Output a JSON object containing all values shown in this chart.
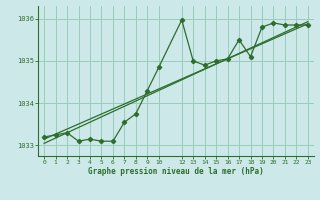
{
  "bg_color": "#cce8e8",
  "grid_color": "#99ccbb",
  "line_color": "#2d6e2d",
  "xlabel": "Graphe pression niveau de la mer (hPa)",
  "ylim": [
    1032.75,
    1036.3
  ],
  "xlim": [
    -0.5,
    23.5
  ],
  "yticks": [
    1033,
    1034,
    1035,
    1036
  ],
  "xticks": [
    0,
    1,
    2,
    3,
    4,
    5,
    6,
    7,
    8,
    9,
    10,
    12,
    13,
    14,
    15,
    16,
    17,
    18,
    19,
    20,
    21,
    22,
    23
  ],
  "series1_x": [
    0,
    1,
    2,
    3,
    4,
    5,
    6,
    7,
    8,
    9,
    10,
    12,
    13,
    14,
    15,
    16,
    17,
    18,
    19,
    20,
    21,
    22,
    23
  ],
  "series1_y": [
    1033.2,
    1033.25,
    1033.3,
    1033.1,
    1033.15,
    1033.1,
    1033.1,
    1033.55,
    1033.75,
    1034.3,
    1034.85,
    1035.97,
    1035.0,
    1034.9,
    1035.0,
    1035.05,
    1035.5,
    1035.1,
    1035.8,
    1035.9,
    1035.85,
    1035.85,
    1035.85
  ],
  "series2_x": [
    0,
    23
  ],
  "series2_y": [
    1033.15,
    1035.88
  ],
  "series3_x": [
    0,
    23
  ],
  "series3_y": [
    1033.05,
    1035.93
  ]
}
